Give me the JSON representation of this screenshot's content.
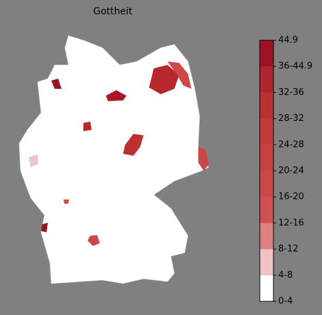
{
  "title": "Gottheit",
  "colorbar": {
    "labels": [
      "0-4",
      "4-8",
      "8-12",
      "12-16",
      "16-20",
      "20-24",
      "24-28",
      "28-32",
      "32-36",
      "36-44.9",
      "44.9"
    ],
    "colors": [
      "#ffffff",
      "#f0c4c4",
      "#dc8282",
      "#cf5050",
      "#cc4848",
      "#c84040",
      "#c33a3a",
      "#bd3030",
      "#b02430",
      "#9c1226"
    ]
  }
}
